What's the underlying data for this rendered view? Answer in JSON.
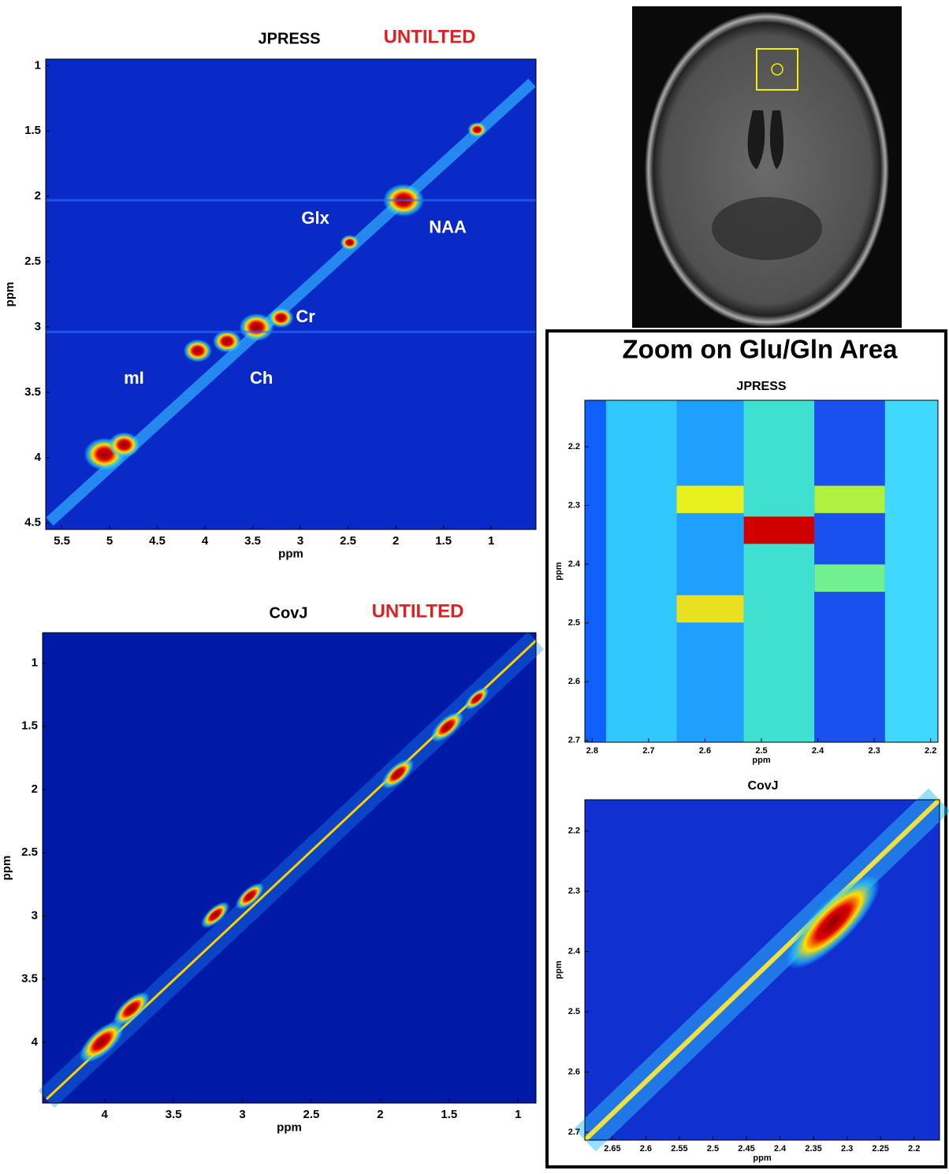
{
  "chart_data": [
    {
      "type": "heatmap",
      "title": "JPRESS",
      "title_tag": "UNTILTED",
      "xlabel": "ppm",
      "ylabel": "ppm",
      "xlim": [
        5.67,
        0.53
      ],
      "ylim": [
        0.95,
        4.55
      ],
      "xticks": [
        5.5,
        5,
        4.5,
        4,
        3.5,
        3,
        2.5,
        2,
        1.5,
        1
      ],
      "yticks": [
        1,
        1.5,
        2,
        2.5,
        3,
        3.5,
        4,
        4.5
      ],
      "annotations": [
        "Glx",
        "NAA",
        "Cr",
        "mI",
        "Ch"
      ]
    },
    {
      "type": "heatmap",
      "title": "CovJ",
      "title_tag": "UNTILTED",
      "xlabel": "ppm",
      "ylabel": "ppm",
      "xlim": [
        4.45,
        0.87
      ],
      "ylim": [
        0.76,
        4.48
      ],
      "xticks": [
        4,
        3.5,
        3,
        2.5,
        2,
        1.5,
        1
      ],
      "yticks": [
        1,
        1.5,
        2,
        2.5,
        3,
        3.5,
        4
      ]
    },
    {
      "type": "heatmap",
      "title": "JPRESS",
      "xlabel": "ppm",
      "ylabel": "ppm",
      "xlim": [
        2.813,
        2.187
      ],
      "ylim": [
        2.121,
        2.703
      ],
      "xticks": [
        2.8,
        2.7,
        2.6,
        2.5,
        2.4,
        2.3,
        2.2
      ],
      "yticks": [
        2.2,
        2.3,
        2.4,
        2.5,
        2.6,
        2.7
      ]
    },
    {
      "type": "heatmap",
      "title": "CovJ",
      "xlabel": "ppm",
      "ylabel": "ppm",
      "xlim": [
        2.691,
        2.162
      ],
      "ylim": [
        2.148,
        2.713
      ],
      "xticks": [
        2.65,
        2.6,
        2.55,
        2.5,
        2.45,
        2.4,
        2.35,
        2.3,
        2.25,
        2.2
      ],
      "yticks": [
        2.2,
        2.3,
        2.4,
        2.5,
        2.6,
        2.7
      ]
    }
  ],
  "zoom_panel": {
    "title": "Zoom on Glu/Gln Area"
  }
}
